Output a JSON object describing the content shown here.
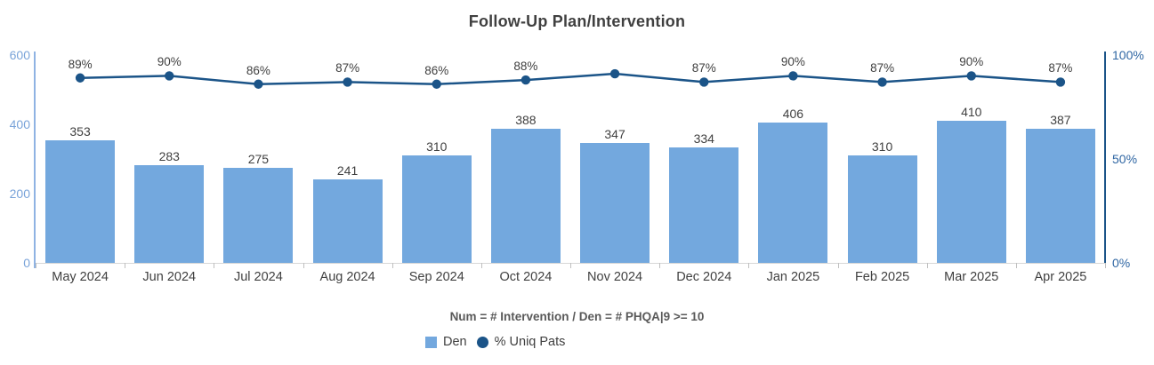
{
  "chart": {
    "title": "Follow-Up Plan/Intervention",
    "subtitle": "Num = # Intervention / Den = # PHQA|9 >= 10",
    "legend": [
      {
        "label": "Den",
        "marker": "square",
        "color": "#73A8DE"
      },
      {
        "label": "% Uniq Pats",
        "marker": "circle",
        "color": "#1B5488"
      }
    ]
  },
  "chart_data": {
    "type": "combo",
    "title": "Follow-Up Plan/Intervention",
    "subtitle": "Num = # Intervention / Den = # PHQA|9 >= 10",
    "categories": [
      "May 2024",
      "Jun 2024",
      "Jul 2024",
      "Aug 2024",
      "Sep 2024",
      "Oct 2024",
      "Nov 2024",
      "Dec 2024",
      "Jan 2025",
      "Feb 2025",
      "Mar 2025",
      "Apr 2025"
    ],
    "series": [
      {
        "name": "Den",
        "type": "bar",
        "axis": "left",
        "color": "#73A8DE",
        "values": [
          353,
          283,
          275,
          241,
          310,
          388,
          347,
          334,
          406,
          310,
          410,
          387
        ]
      },
      {
        "name": "% Uniq Pats",
        "type": "line",
        "axis": "right",
        "color": "#1B5488",
        "values": [
          89,
          90,
          86,
          87,
          86,
          88,
          91,
          87,
          90,
          87,
          90,
          87
        ],
        "point_labels": [
          "89%",
          "90%",
          "86%",
          "87%",
          "86%",
          "88%",
          "",
          "87%",
          "90%",
          "87%",
          "90%",
          "87%"
        ]
      }
    ],
    "left_axis": {
      "range": [
        0,
        600
      ],
      "ticks": [
        0,
        200,
        400,
        600
      ],
      "label_color": "#79A3D9",
      "line_color": "#8FB3E3"
    },
    "right_axis": {
      "range": [
        0,
        100
      ],
      "ticks": [
        0,
        50,
        100
      ],
      "tick_labels": [
        "0%",
        "50%",
        "100%"
      ],
      "label_color": "#2F66A3",
      "line_color": "#1B5488"
    },
    "xlabel": "",
    "ylabel": "",
    "grid": false,
    "legend_position": "bottom"
  }
}
